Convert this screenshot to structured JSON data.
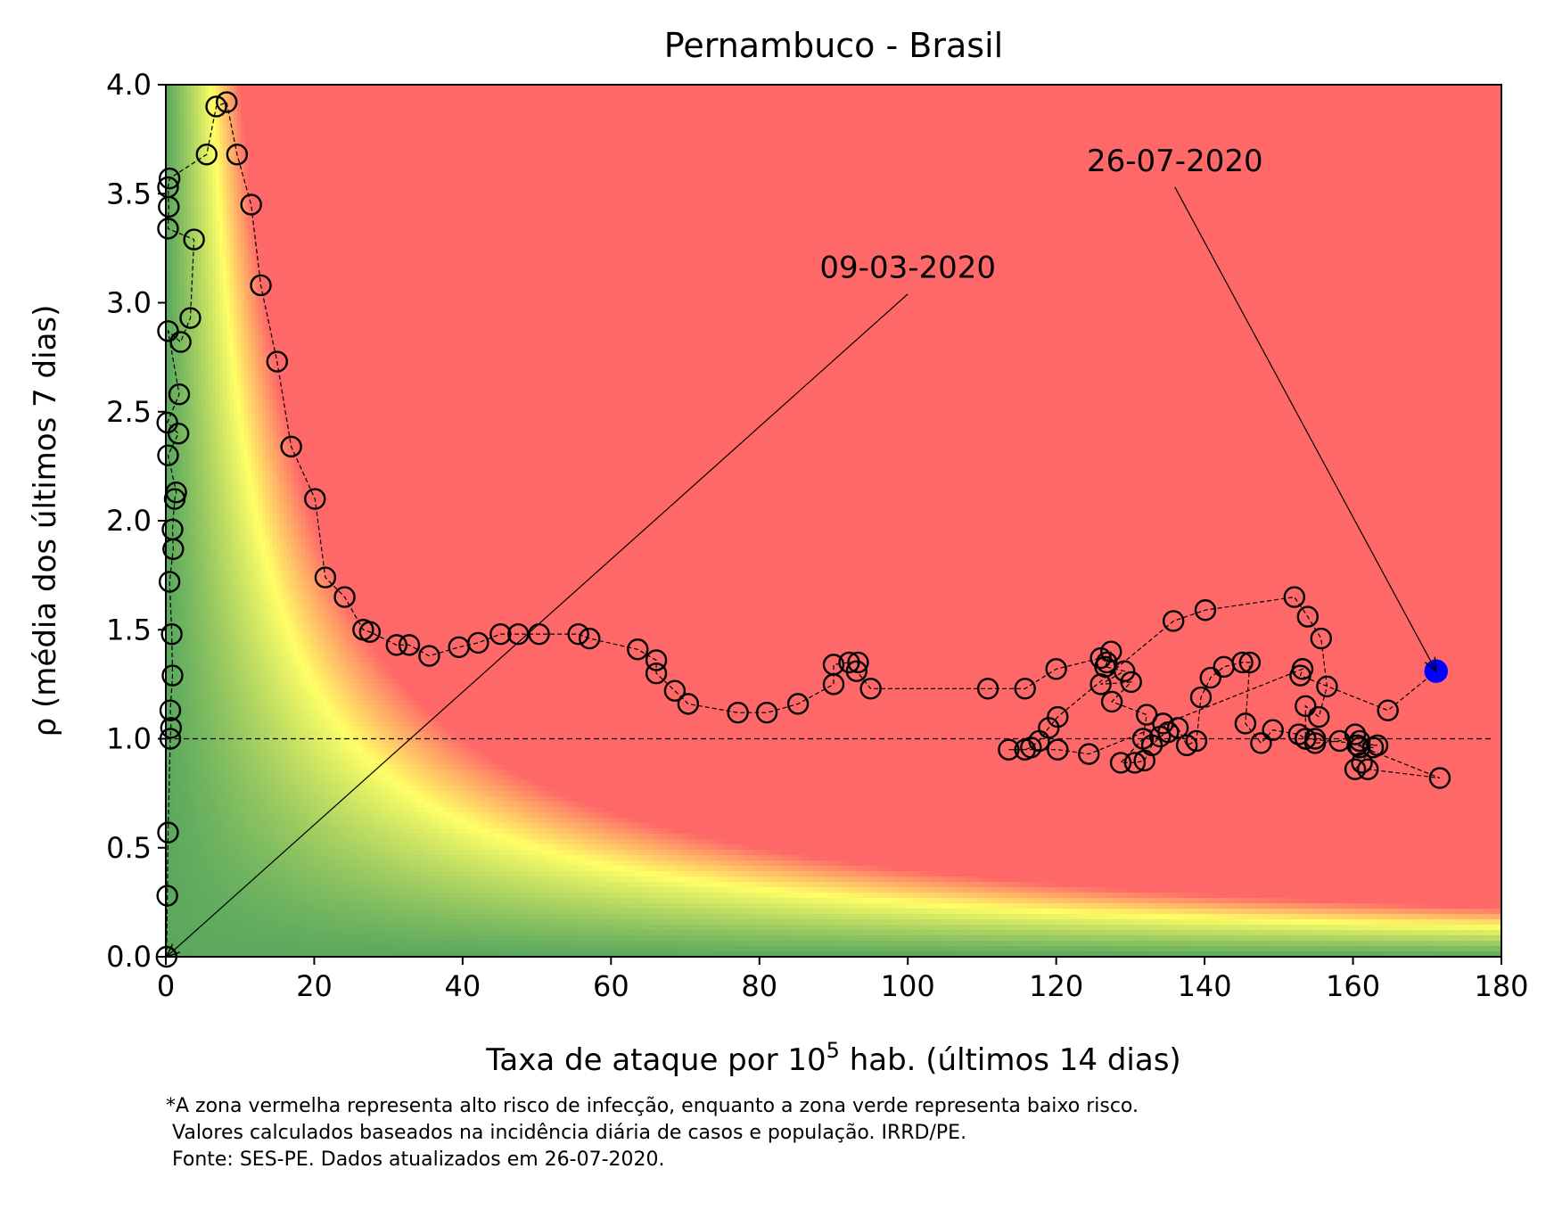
{
  "chart_data": {
    "type": "scatter",
    "title": "Pernambuco - Brasil",
    "xlabel_prefix": "Taxa de ataque por 10",
    "xlabel_sup": "5",
    "xlabel_suffix": " hab. (últimos 14 dias)",
    "ylabel": "ρ (média dos últimos 7 dias)",
    "xlim": [
      0,
      180
    ],
    "ylim": [
      0,
      4
    ],
    "xticks": [
      "0",
      "20",
      "40",
      "60",
      "80",
      "100",
      "120",
      "140",
      "160",
      "180"
    ],
    "yticks": [
      "0.0",
      "0.5",
      "1.0",
      "1.5",
      "2.0",
      "2.5",
      "3.0",
      "3.5",
      "4.0"
    ],
    "reference_line_y": 1.0,
    "background": "risk heatmap: green (low risk) to yellow to red (high risk)",
    "colors": {
      "green": "#5aa85e",
      "yellow": "#ffff66",
      "red": "#ff6868",
      "marker_edge": "#000000",
      "last_point": "#0000ff"
    },
    "series": [
      {
        "points": [
          [
            0.1,
            0.0
          ],
          [
            0.2,
            0.28
          ],
          [
            0.3,
            0.57
          ],
          [
            0.6,
            1.0
          ],
          [
            0.7,
            1.05
          ],
          [
            0.6,
            1.13
          ],
          [
            0.9,
            1.29
          ],
          [
            0.8,
            1.48
          ],
          [
            0.5,
            1.72
          ],
          [
            1.0,
            1.87
          ],
          [
            0.9,
            1.96
          ],
          [
            1.2,
            2.1
          ],
          [
            1.4,
            2.13
          ],
          [
            0.3,
            2.3
          ],
          [
            1.7,
            2.4
          ],
          [
            0.2,
            2.45
          ],
          [
            1.8,
            2.58
          ],
          [
            0.3,
            2.87
          ],
          [
            2.0,
            2.82
          ],
          [
            3.3,
            2.93
          ],
          [
            3.8,
            3.29
          ],
          [
            0.3,
            3.34
          ],
          [
            0.4,
            3.44
          ],
          [
            0.3,
            3.53
          ],
          [
            0.5,
            3.57
          ],
          [
            5.5,
            3.68
          ],
          [
            6.8,
            3.9
          ],
          [
            8.2,
            3.92
          ],
          [
            9.6,
            3.68
          ],
          [
            11.5,
            3.45
          ],
          [
            12.8,
            3.08
          ],
          [
            15.0,
            2.73
          ],
          [
            16.9,
            2.34
          ],
          [
            20.1,
            2.1
          ],
          [
            21.5,
            1.74
          ],
          [
            24.1,
            1.65
          ],
          [
            26.6,
            1.5
          ],
          [
            27.5,
            1.49
          ],
          [
            31.1,
            1.43
          ],
          [
            32.8,
            1.43
          ],
          [
            35.5,
            1.38
          ],
          [
            39.5,
            1.42
          ],
          [
            42.1,
            1.44
          ],
          [
            45.1,
            1.48
          ],
          [
            47.5,
            1.48
          ],
          [
            50.3,
            1.48
          ],
          [
            55.6,
            1.48
          ],
          [
            57.1,
            1.46
          ],
          [
            63.6,
            1.41
          ],
          [
            66.1,
            1.36
          ],
          [
            66.1,
            1.3
          ],
          [
            68.6,
            1.22
          ],
          [
            70.4,
            1.16
          ],
          [
            77.1,
            1.12
          ],
          [
            81.0,
            1.12
          ],
          [
            85.2,
            1.16
          ],
          [
            90.0,
            1.25
          ],
          [
            90.0,
            1.34
          ],
          [
            92.1,
            1.35
          ],
          [
            93.3,
            1.35
          ],
          [
            93.1,
            1.31
          ],
          [
            95.0,
            1.23
          ],
          [
            110.8,
            1.23
          ],
          [
            115.8,
            1.23
          ],
          [
            120.0,
            1.32
          ],
          [
            126.0,
            1.37
          ],
          [
            126.8,
            1.35
          ],
          [
            127.4,
            1.4
          ],
          [
            126.6,
            1.33
          ],
          [
            129.2,
            1.31
          ],
          [
            126.0,
            1.25
          ],
          [
            130.1,
            1.26
          ],
          [
            127.5,
            1.17
          ],
          [
            132.2,
            1.11
          ],
          [
            131.7,
            1.0
          ],
          [
            128.7,
            0.89
          ],
          [
            130.6,
            0.89
          ],
          [
            131.9,
            0.9
          ],
          [
            132.9,
            0.97
          ],
          [
            134.0,
            1.01
          ],
          [
            135.1,
            1.03
          ],
          [
            134.4,
            1.07
          ],
          [
            136.4,
            1.05
          ],
          [
            137.6,
            0.97
          ],
          [
            138.9,
            0.99
          ],
          [
            139.5,
            1.19
          ],
          [
            140.8,
            1.28
          ],
          [
            142.6,
            1.33
          ],
          [
            145.1,
            1.35
          ],
          [
            146.1,
            1.35
          ],
          [
            145.5,
            1.07
          ],
          [
            147.6,
            0.98
          ],
          [
            149.2,
            1.04
          ],
          [
            152.7,
            1.02
          ],
          [
            153.6,
            1.0
          ],
          [
            154.9,
            1.0
          ],
          [
            154.9,
            0.98
          ],
          [
            158.2,
            0.99
          ],
          [
            160.3,
            1.02
          ],
          [
            160.9,
            0.99
          ],
          [
            160.9,
            0.96
          ],
          [
            162.7,
            0.96
          ],
          [
            160.3,
            0.86
          ],
          [
            161.2,
            0.89
          ],
          [
            162.0,
            0.86
          ],
          [
            171.7,
            0.82
          ],
          [
            160.6,
            0.97
          ],
          [
            163.3,
            0.97
          ],
          [
            153.6,
            1.0
          ],
          [
            153.6,
            1.15
          ],
          [
            155.4,
            1.1
          ],
          [
            156.5,
            1.24
          ],
          [
            155.7,
            1.46
          ],
          [
            153.9,
            1.56
          ],
          [
            152.1,
            1.65
          ],
          [
            140.1,
            1.59
          ],
          [
            135.8,
            1.54
          ],
          [
            120.2,
            1.1
          ],
          [
            119.0,
            1.05
          ],
          [
            117.7,
            0.99
          ],
          [
            116.6,
            0.96
          ],
          [
            115.8,
            0.95
          ],
          [
            113.6,
            0.95
          ],
          [
            120.2,
            0.95
          ],
          [
            124.4,
            0.93
          ],
          [
            153.2,
            1.32
          ],
          [
            152.9,
            1.29
          ],
          [
            164.7,
            1.13
          ],
          [
            171.2,
            1.31
          ]
        ]
      }
    ],
    "annotations": [
      {
        "text": "09-03-2020",
        "point": [
          0.1,
          0.0
        ],
        "label_xy": [
          100,
          3.04
        ]
      },
      {
        "text": "26-07-2020",
        "point": [
          171.2,
          1.31
        ],
        "label_xy": [
          136,
          3.53
        ]
      }
    ],
    "footnote": [
      "*A zona vermelha representa alto risco de infecção, enquanto a zona verde representa baixo risco.",
      " Valores calculados baseados na incidência diária de casos e população. IRRD/PE.",
      " Fonte: SES-PE. Dados atualizados em 26-07-2020."
    ]
  }
}
